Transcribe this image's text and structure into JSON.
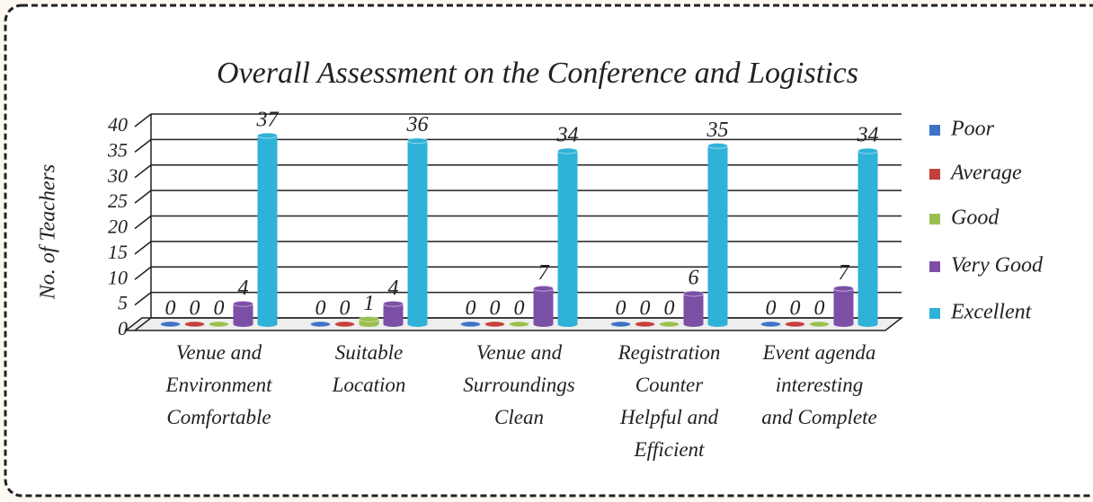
{
  "chart_data": {
    "type": "bar3d",
    "title": "Overall Assessment on the Conference and Logistics",
    "y_label": "No. of Teachers",
    "categories": [
      "Venue and Environment Comfortable",
      "Suitable Location",
      "Venue and Surroundings Clean",
      "Registration Counter Helpful and Efficient",
      "Event agenda interesting and Complete"
    ],
    "series": [
      {
        "name": "Poor",
        "color": "#3f73c6",
        "values": [
          0,
          0,
          0,
          0,
          0
        ]
      },
      {
        "name": "Average",
        "color": "#c4403a",
        "values": [
          0,
          0,
          0,
          0,
          0
        ]
      },
      {
        "name": "Good",
        "color": "#9bbf4e",
        "values": [
          0,
          1,
          0,
          0,
          0
        ]
      },
      {
        "name": "Very Good",
        "color": "#7b4fa6",
        "values": [
          4,
          4,
          7,
          6,
          7
        ]
      },
      {
        "name": "Excellent",
        "color": "#2fb2d8",
        "values": [
          37,
          36,
          34,
          35,
          34
        ]
      }
    ],
    "ylim": [
      0,
      40
    ],
    "yticks": [
      0,
      5,
      10,
      15,
      20,
      25,
      30,
      35,
      40
    ],
    "grid": true,
    "legend": "right"
  }
}
